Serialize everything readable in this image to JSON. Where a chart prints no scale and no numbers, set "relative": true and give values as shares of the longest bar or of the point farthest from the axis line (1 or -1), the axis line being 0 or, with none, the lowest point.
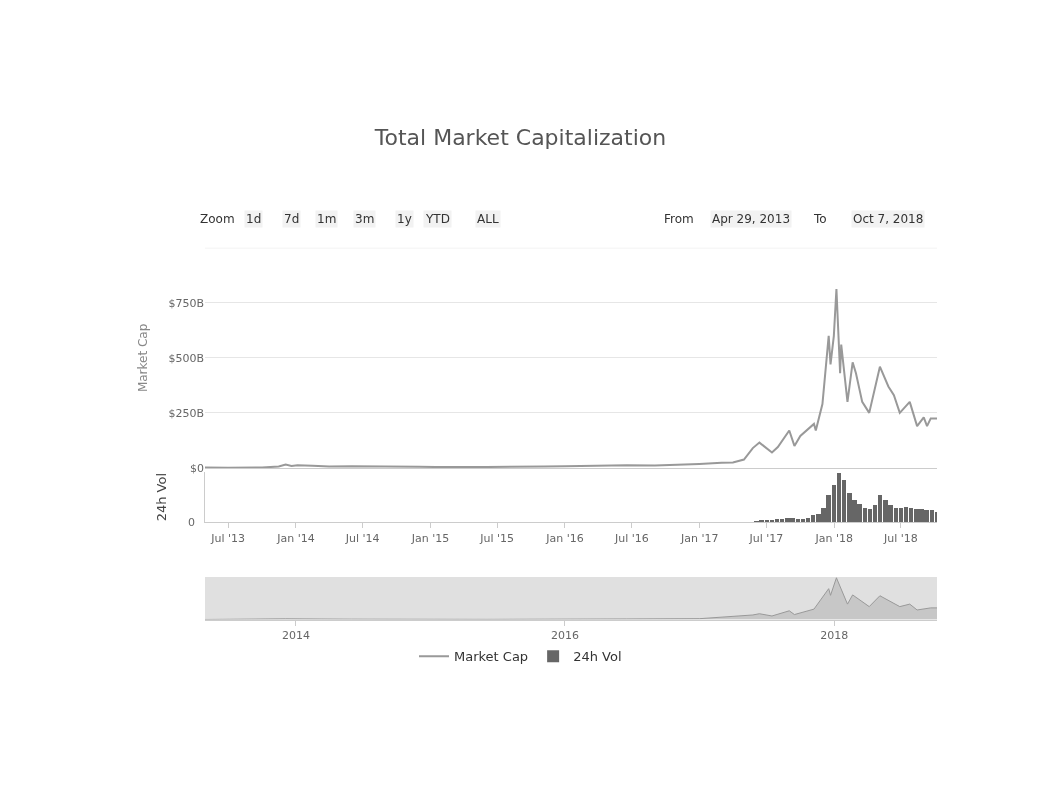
{
  "chart_data": [
    {
      "type": "line",
      "title": "Total Market Capitalization",
      "ylabel": "Market Cap",
      "legend": "bottom",
      "grid": "y",
      "tick_labels": "y",
      "marker": "none",
      "annotations": [
        "Zoom",
        "1d",
        "7d",
        "1m",
        "3m",
        "1y",
        "YTD",
        "ALL",
        "From",
        "Apr 29, 2013",
        "To",
        "Oct 7, 2018"
      ],
      "xlim": [
        "2013-04-29",
        "2018-10-07"
      ],
      "ylim": [
        0,
        1000
      ],
      "yticks": [
        {
          "value": 0,
          "label": "$0"
        },
        {
          "value": 250,
          "label": "$250B"
        },
        {
          "value": 500,
          "label": "$500B"
        },
        {
          "value": 750,
          "label": "$750B"
        },
        {
          "value": 1000,
          "label": null
        }
      ],
      "x": [
        "2013-04-29",
        "2013-07-01",
        "2013-10-01",
        "2013-11-15",
        "2013-12-04",
        "2013-12-20",
        "2014-01-05",
        "2014-02-15",
        "2014-04-01",
        "2014-06-01",
        "2014-09-01",
        "2014-12-01",
        "2015-01-15",
        "2015-06-01",
        "2015-11-05",
        "2016-01-01",
        "2016-06-17",
        "2016-09-01",
        "2016-12-31",
        "2017-03-01",
        "2017-04-01",
        "2017-05-01",
        "2017-05-25",
        "2017-06-12",
        "2017-07-16",
        "2017-08-01",
        "2017-09-01",
        "2017-09-15",
        "2017-10-01",
        "2017-11-07",
        "2017-11-12",
        "2017-11-30",
        "2017-12-17",
        "2017-12-22",
        "2017-12-31",
        "2018-01-07",
        "2018-01-17",
        "2018-01-20",
        "2018-02-06",
        "2018-02-20",
        "2018-03-01",
        "2018-03-18",
        "2018-04-06",
        "2018-05-05",
        "2018-05-28",
        "2018-06-12",
        "2018-06-28",
        "2018-07-25",
        "2018-08-14",
        "2018-09-01",
        "2018-09-10",
        "2018-09-20",
        "2018-10-07"
      ],
      "series": [
        {
          "name": "Market Cap",
          "color": "#999999",
          "values": [
            2,
            1,
            2,
            6,
            15,
            9,
            12,
            10,
            6,
            8,
            6,
            5,
            4,
            4,
            6,
            7,
            12,
            11,
            18,
            23,
            25,
            38,
            90,
            115,
            70,
            95,
            170,
            100,
            145,
            200,
            170,
            290,
            600,
            470,
            600,
            813,
            430,
            560,
            300,
            480,
            430,
            300,
            250,
            460,
            370,
            330,
            250,
            300,
            190,
            230,
            190,
            225,
            225
          ]
        }
      ]
    },
    {
      "type": "bar",
      "ylabel": "24h Vol",
      "relative": true,
      "legend": "bottom",
      "tick_labels": "x",
      "annotations": [
        "0"
      ],
      "xlim": [
        "2013-04-29",
        "2018-10-07"
      ],
      "xticks": [
        {
          "value": "2013-07-01",
          "label": "Jul '13"
        },
        {
          "value": "2014-01-01",
          "label": "Jan '14"
        },
        {
          "value": "2014-07-01",
          "label": "Jul '14"
        },
        {
          "value": "2015-01-01",
          "label": "Jan '15"
        },
        {
          "value": "2015-07-01",
          "label": "Jul '15"
        },
        {
          "value": "2016-01-01",
          "label": "Jan '16"
        },
        {
          "value": "2016-07-01",
          "label": "Jul '16"
        },
        {
          "value": "2017-01-01",
          "label": "Jan '17"
        },
        {
          "value": "2017-07-01",
          "label": "Jul '17"
        },
        {
          "value": "2018-01-01",
          "label": "Jan '18"
        },
        {
          "value": "2018-07-01",
          "label": "Jul '18"
        }
      ],
      "x": [
        "2017-06-04",
        "2017-06-18",
        "2017-07-02",
        "2017-07-16",
        "2017-07-30",
        "2017-08-13",
        "2017-08-27",
        "2017-09-10",
        "2017-09-24",
        "2017-10-08",
        "2017-10-22",
        "2017-11-05",
        "2017-11-19",
        "2017-12-03",
        "2017-12-17",
        "2017-12-31",
        "2018-01-14",
        "2018-01-28",
        "2018-02-11",
        "2018-02-25",
        "2018-03-11",
        "2018-03-25",
        "2018-04-08",
        "2018-04-22",
        "2018-05-06",
        "2018-05-20",
        "2018-06-03",
        "2018-06-17",
        "2018-07-01",
        "2018-07-15",
        "2018-07-29",
        "2018-08-12",
        "2018-08-26",
        "2018-09-09",
        "2018-09-23",
        "2018-10-07"
      ],
      "series": [
        {
          "name": "24h Vol",
          "color": "#666666",
          "values": [
            0.04,
            0.05,
            0.05,
            0.06,
            0.07,
            0.08,
            0.1,
            0.09,
            0.07,
            0.08,
            0.1,
            0.15,
            0.18,
            0.3,
            0.55,
            0.75,
            1.0,
            0.85,
            0.6,
            0.45,
            0.38,
            0.3,
            0.28,
            0.35,
            0.55,
            0.45,
            0.35,
            0.3,
            0.3,
            0.32,
            0.3,
            0.28,
            0.28,
            0.25,
            0.25,
            0.22
          ]
        }
      ]
    },
    {
      "type": "area",
      "relative": true,
      "tick_labels": "x",
      "xlim": [
        "2013-04-29",
        "2018-10-07"
      ],
      "xticks": [
        {
          "value": "2014-01-01",
          "label": "2014"
        },
        {
          "value": "2016-01-01",
          "label": "2016"
        },
        {
          "value": "2018-01-01",
          "label": "2018"
        }
      ],
      "x": [
        "2013-04-29",
        "2013-12-04",
        "2014-06-01",
        "2015-06-01",
        "2016-06-17",
        "2017-01-01",
        "2017-05-25",
        "2017-06-12",
        "2017-07-16",
        "2017-09-01",
        "2017-09-15",
        "2017-11-07",
        "2017-12-17",
        "2017-12-22",
        "2018-01-07",
        "2018-02-06",
        "2018-02-20",
        "2018-04-06",
        "2018-05-05",
        "2018-06-28",
        "2018-07-25",
        "2018-08-14",
        "2018-09-20",
        "2018-10-07"
      ],
      "series": [
        {
          "color": "#999999",
          "values": [
            0.002,
            0.018,
            0.01,
            0.005,
            0.015,
            0.022,
            0.11,
            0.14,
            0.086,
            0.21,
            0.12,
            0.25,
            0.74,
            0.58,
            1,
            0.37,
            0.59,
            0.31,
            0.57,
            0.31,
            0.37,
            0.23,
            0.28,
            0.28
          ]
        }
      ]
    }
  ]
}
